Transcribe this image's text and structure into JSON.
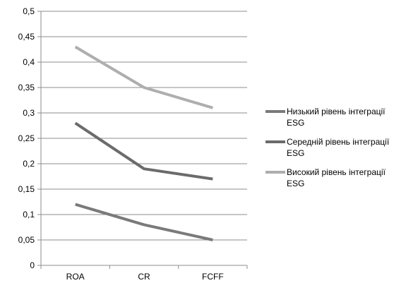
{
  "chart_data": {
    "type": "line",
    "categories": [
      "ROA",
      "CR",
      "FCFF"
    ],
    "ylim": [
      0,
      0.5
    ],
    "yticks": [
      "0",
      "0,05",
      "0,1",
      "0,15",
      "0,2",
      "0,25",
      "0,3",
      "0,35",
      "0,4",
      "0,45",
      "0,5"
    ],
    "grid": true,
    "legend_position": "right",
    "series": [
      {
        "name": "Низький рівень інтеграції ESG",
        "values": [
          0.12,
          0.08,
          0.05
        ],
        "color": "#7a7a7a"
      },
      {
        "name": "Середній рівень інтеграції ESG",
        "values": [
          0.28,
          0.19,
          0.17
        ],
        "color": "#6b6b6b"
      },
      {
        "name": "Високий рівень інтеграції ESG",
        "values": [
          0.43,
          0.35,
          0.31
        ],
        "color": "#aeaeae"
      }
    ]
  }
}
